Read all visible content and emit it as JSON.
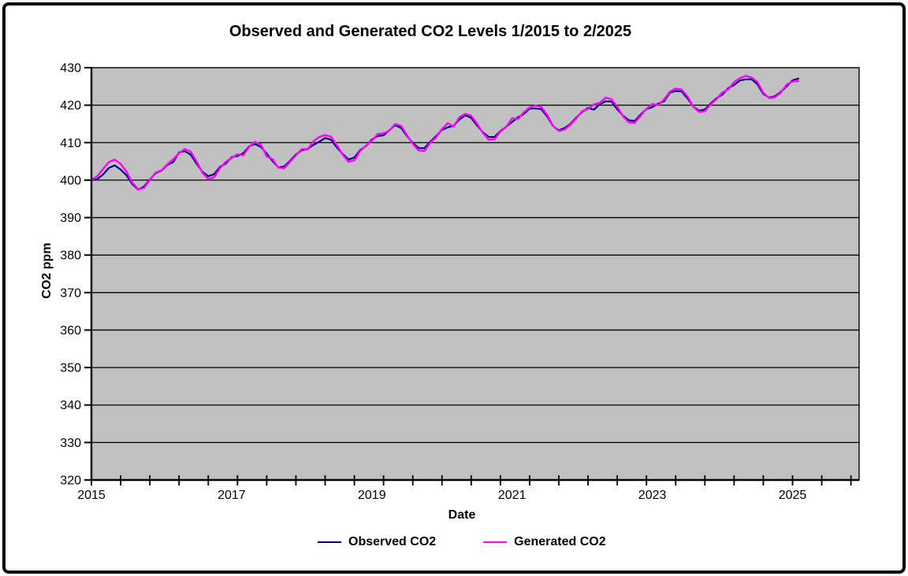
{
  "chart_data": {
    "type": "line",
    "title": "Observed and Generated CO2 Levels 1/2015 to 2/2025",
    "xlabel": "Date",
    "ylabel": "CO2 ppm",
    "ylim": [
      320,
      430
    ],
    "xlim": [
      2015,
      2025.95
    ],
    "grid": "horizontal",
    "legend_position": "bottom",
    "y_ticks": [
      320,
      330,
      340,
      350,
      360,
      370,
      380,
      390,
      400,
      410,
      420,
      430
    ],
    "x_tick_labels": [
      "2015",
      "2017",
      "2019",
      "2021",
      "2023",
      "2025"
    ],
    "x_tick_years": [
      2015,
      2017,
      2019,
      2021,
      2023,
      2025
    ],
    "x_start_year": 2015,
    "x_minor_tick_interval_months": 5,
    "x_minor_tick_last_month": 130,
    "colors": {
      "plot_bg": "#c0c0c0",
      "grid": "#000000",
      "axis": "#000000",
      "text": "#000000",
      "observed": "#000080",
      "generated": "#ff00ff"
    },
    "series": [
      {
        "name": "Observed CO2",
        "color": "#000080",
        "values": [
          399.98,
          400.26,
          401.52,
          403.26,
          403.94,
          402.8,
          401.3,
          398.93,
          397.5,
          398.28,
          400.16,
          401.85,
          402.52,
          404.04,
          404.83,
          407.42,
          407.7,
          406.81,
          404.39,
          402.25,
          401.03,
          401.57,
          403.53,
          404.42,
          406.13,
          406.42,
          407.18,
          409.0,
          409.65,
          408.84,
          407.07,
          405.07,
          403.38,
          403.64,
          405.14,
          406.82,
          407.96,
          408.32,
          409.41,
          410.24,
          411.24,
          410.79,
          408.71,
          406.99,
          405.51,
          406.0,
          408.02,
          409.07,
          410.83,
          411.75,
          411.97,
          413.32,
          414.66,
          413.92,
          411.77,
          409.95,
          408.54,
          408.52,
          410.27,
          411.76,
          413.4,
          414.11,
          414.51,
          416.21,
          417.31,
          416.6,
          414.62,
          412.78,
          411.52,
          411.51,
          413.12,
          414.26,
          415.52,
          416.75,
          417.64,
          419.05,
          419.13,
          418.94,
          416.96,
          414.47,
          413.3,
          413.93,
          415.01,
          416.71,
          418.19,
          419.28,
          418.81,
          420.23,
          420.99,
          420.99,
          418.9,
          417.19,
          415.95,
          415.78,
          417.51,
          418.95,
          419.47,
          420.41,
          420.99,
          423.28,
          423.78,
          423.68,
          421.83,
          419.68,
          418.51,
          418.82,
          420.46,
          421.86,
          422.8,
          424.55,
          425.38,
          426.57,
          426.9,
          426.91,
          425.55,
          422.99,
          422.03,
          422.38,
          423.57,
          424.99,
          426.65,
          427.09
        ]
      },
      {
        "name": "Generated CO2",
        "color": "#ff00ff",
        "values": [
          400.1,
          401.0,
          403.0,
          404.8,
          405.5,
          404.3,
          402.3,
          399.3,
          397.6,
          397.9,
          400.0,
          402.0,
          402.6,
          404.2,
          405.6,
          407.2,
          408.3,
          407.6,
          405.0,
          402.0,
          400.3,
          400.8,
          403.2,
          404.9,
          405.9,
          406.9,
          406.6,
          408.9,
          410.2,
          409.5,
          406.3,
          405.6,
          403.3,
          403.2,
          404.9,
          406.6,
          408.3,
          408.2,
          410.4,
          411.5,
          412.0,
          411.6,
          409.4,
          406.8,
          404.9,
          405.3,
          407.8,
          409.2,
          410.5,
          412.3,
          412.5,
          413.2,
          415.0,
          414.5,
          412.0,
          409.7,
          407.9,
          407.8,
          410.0,
          411.4,
          413.6,
          415.2,
          414.3,
          416.8,
          417.7,
          417.2,
          415.1,
          412.6,
          410.8,
          410.9,
          413.0,
          414.2,
          416.5,
          416.3,
          418.1,
          419.4,
          419.9,
          419.5,
          417.4,
          414.5,
          413.1,
          413.5,
          414.8,
          416.5,
          418.4,
          419.0,
          420.2,
          420.6,
          422.0,
          421.6,
          419.6,
          417.0,
          415.4,
          415.3,
          417.2,
          419.0,
          420.3,
          420.0,
          421.5,
          423.6,
          424.4,
          424.2,
          422.4,
          419.6,
          418.2,
          418.4,
          420.2,
          421.6,
          423.4,
          424.2,
          426.2,
          427.2,
          427.8,
          427.4,
          426.2,
          423.3,
          421.9,
          422.1,
          423.4,
          425.5,
          426.3,
          426.4
        ]
      }
    ]
  }
}
